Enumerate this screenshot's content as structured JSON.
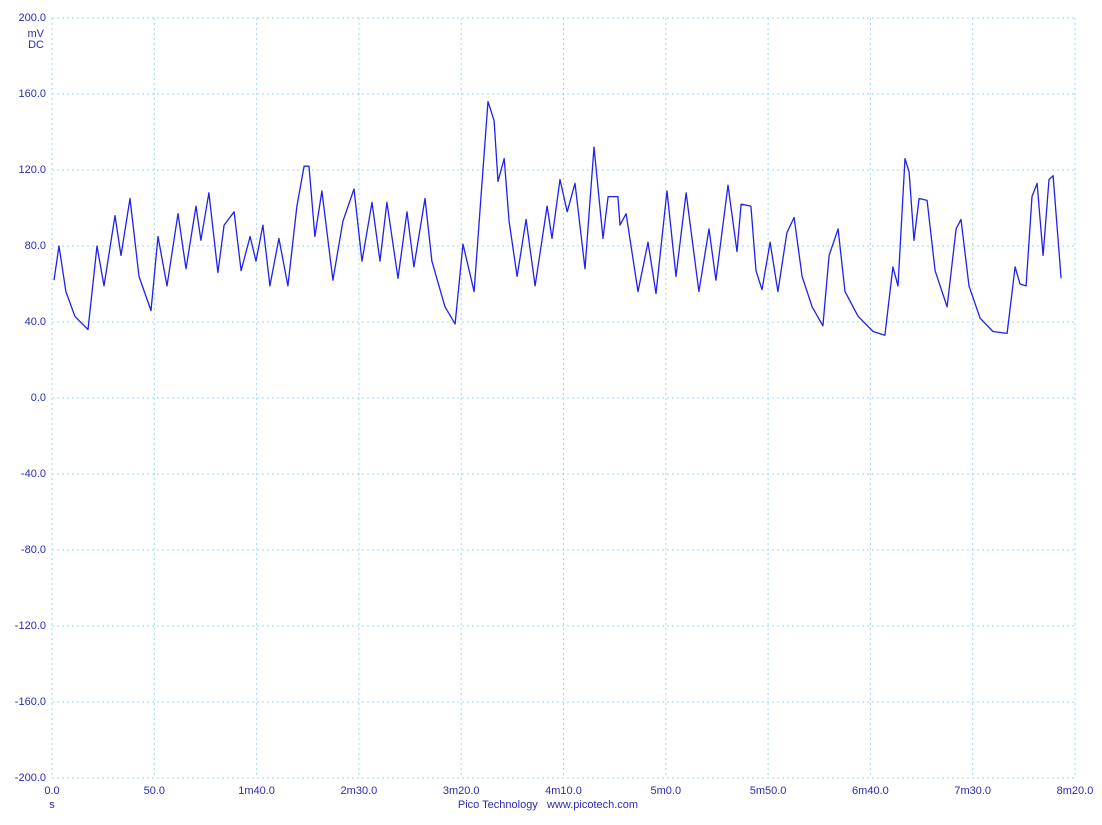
{
  "chart_data": {
    "type": "line",
    "y_unit": "mV",
    "y_unit_note": "DC",
    "x_unit": "s",
    "footer": "Pico Technology   www.picotech.com",
    "grid": true,
    "xlim": [
      0,
      500
    ],
    "ylim": [
      -200,
      200
    ],
    "xticks": [
      {
        "value": 0,
        "label": "0.0"
      },
      {
        "value": 50,
        "label": "50.0"
      },
      {
        "value": 100,
        "label": "1m40.0"
      },
      {
        "value": 150,
        "label": "2m30.0"
      },
      {
        "value": 200,
        "label": "3m20.0"
      },
      {
        "value": 250,
        "label": "4m10.0"
      },
      {
        "value": 300,
        "label": "5m0.0"
      },
      {
        "value": 350,
        "label": "5m50.0"
      },
      {
        "value": 400,
        "label": "6m40.0"
      },
      {
        "value": 450,
        "label": "7m30.0"
      },
      {
        "value": 500,
        "label": "8m20.0"
      }
    ],
    "yticks": [
      {
        "value": 200,
        "label": "200.0"
      },
      {
        "value": 160,
        "label": "160.0"
      },
      {
        "value": 120,
        "label": "120.0"
      },
      {
        "value": 80,
        "label": "80.0"
      },
      {
        "value": 40,
        "label": "40.0"
      },
      {
        "value": 0,
        "label": "0.0"
      },
      {
        "value": -40,
        "label": "-40.0"
      },
      {
        "value": -80,
        "label": "-80.0"
      },
      {
        "value": -120,
        "label": "-120.0"
      },
      {
        "value": -160,
        "label": "-160.0"
      },
      {
        "value": -200,
        "label": "-200.0"
      }
    ],
    "x": [
      1,
      3.4,
      6.8,
      11.2,
      17.6,
      22,
      25.4,
      30.8,
      33.7,
      38.1,
      42.5,
      48.4,
      51.8,
      56.2,
      61.6,
      65.5,
      70.4,
      72.8,
      76.7,
      81.1,
      84.1,
      89,
      92.4,
      96.8,
      99.7,
      103.1,
      106.5,
      110.9,
      115.3,
      119.7,
      123.2,
      125.6,
      128.5,
      131.9,
      137.3,
      142.2,
      147.6,
      151.5,
      156.4,
      160.3,
      163.7,
      169.1,
      173.5,
      176.9,
      182.3,
      185.7,
      192.1,
      197,
      200.9,
      206.3,
      210.2,
      213.1,
      216.1,
      218,
      221,
      223.4,
      227.3,
      231.7,
      236.1,
      242,
      244.4,
      248.3,
      251.8,
      255.6,
      260.5,
      264.9,
      269.3,
      271.8,
      276.6,
      277.6,
      280.6,
      286.4,
      291.3,
      295.2,
      300.6,
      305,
      309.9,
      316.2,
      321.1,
      324.5,
      330.4,
      334.8,
      336.8,
      341.6,
      344.1,
      347,
      351,
      354.8,
      359.2,
      362.7,
      366.6,
      371.5,
      376.8,
      379.8,
      384.2,
      387.6,
      394,
      401.3,
      407.1,
      411,
      413.5,
      416.9,
      418.9,
      421.3,
      423.8,
      427.7,
      431.6,
      437.5,
      441.9,
      444.3,
      448.2,
      453.6,
      459.9,
      466.8,
      470.7,
      473.1,
      476.1,
      479,
      481.5,
      484.4,
      487.3,
      489.3,
      493.2
    ],
    "series": [
      {
        "color": "#2020f0",
        "values": [
          62,
          80,
          56,
          43,
          36,
          80,
          59,
          96,
          75,
          105,
          64,
          46,
          85,
          59,
          97,
          68,
          101,
          83,
          108,
          66,
          91,
          98,
          67,
          85,
          72,
          91,
          59,
          84,
          59,
          101,
          122,
          122,
          85,
          109,
          62,
          93,
          110,
          72,
          103,
          72,
          103,
          63,
          98,
          69,
          105,
          72,
          48,
          39,
          81,
          56,
          114,
          156,
          146,
          114,
          126,
          93,
          64,
          94,
          59,
          101,
          84,
          115,
          98,
          113,
          68,
          132,
          84,
          106,
          106,
          91,
          97,
          56,
          82,
          55,
          109,
          64,
          108,
          56,
          89,
          62,
          112,
          77,
          102,
          101,
          67,
          57,
          82,
          56,
          87,
          95,
          64,
          48,
          38,
          75,
          89,
          56,
          43,
          35,
          33,
          69,
          59,
          126,
          119,
          83,
          105,
          104,
          67,
          48,
          89,
          94,
          59,
          42,
          35,
          34,
          69,
          60,
          59,
          106,
          113,
          75,
          115,
          117,
          63
        ]
      }
    ]
  }
}
